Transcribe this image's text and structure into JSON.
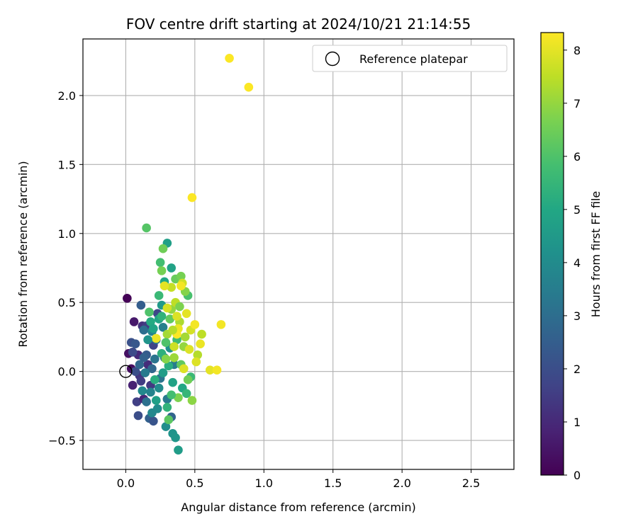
{
  "chart_data": {
    "type": "scatter",
    "title": "FOV centre drift starting at 2024/10/21 21:14:55",
    "xlabel": "Angular distance from reference (arcmin)",
    "ylabel": "Rotation from reference (arcmin)",
    "xlim": [
      -0.31,
      2.81
    ],
    "ylim": [
      -0.71,
      2.41
    ],
    "xticks": [
      0.0,
      0.5,
      1.0,
      1.5,
      2.0,
      2.5
    ],
    "xtick_labels": [
      "0.0",
      "0.5",
      "1.0",
      "1.5",
      "2.0",
      "2.5"
    ],
    "yticks": [
      -0.5,
      0.0,
      0.5,
      1.0,
      1.5,
      2.0
    ],
    "ytick_labels": [
      "−0.5",
      "0.0",
      "0.5",
      "1.0",
      "1.5",
      "2.0"
    ],
    "grid": true,
    "legend": {
      "position": "top-right",
      "label": "Reference platepar",
      "marker": "open-circle"
    },
    "reference_point": {
      "x": 0.0,
      "y": 0.0
    },
    "colorbar": {
      "label": "Hours from first FF file",
      "min": 0,
      "max": 8.33,
      "ticks": [
        0,
        1,
        2,
        3,
        4,
        5,
        6,
        7,
        8
      ],
      "tick_labels": [
        "0",
        "1",
        "2",
        "3",
        "4",
        "5",
        "6",
        "7",
        "8"
      ],
      "colormap": "viridis"
    },
    "points": [
      {
        "x": 0.01,
        "y": 0.53,
        "t": 0.05
      },
      {
        "x": 0.06,
        "y": 0.36,
        "t": 0.6
      },
      {
        "x": 0.02,
        "y": 0.13,
        "t": 0.4
      },
      {
        "x": 0.04,
        "y": 0.02,
        "t": 0.3
      },
      {
        "x": 0.05,
        "y": -0.1,
        "t": 0.8
      },
      {
        "x": 0.09,
        "y": 0.12,
        "t": 1.0
      },
      {
        "x": 0.12,
        "y": 0.33,
        "t": 1.2
      },
      {
        "x": 0.15,
        "y": 0.33,
        "t": 1.5
      },
      {
        "x": 0.08,
        "y": -0.22,
        "t": 1.6
      },
      {
        "x": 0.13,
        "y": -0.2,
        "t": 0.9
      },
      {
        "x": 0.1,
        "y": -0.03,
        "t": 1.3
      },
      {
        "x": 0.16,
        "y": 0.05,
        "t": 1.1
      },
      {
        "x": 0.18,
        "y": -0.1,
        "t": 1.4
      },
      {
        "x": 0.2,
        "y": 0.19,
        "t": 1.7
      },
      {
        "x": 0.23,
        "y": 0.42,
        "t": 1.8
      },
      {
        "x": 0.09,
        "y": -0.32,
        "t": 2.0
      },
      {
        "x": 0.04,
        "y": 0.21,
        "t": 2.1
      },
      {
        "x": 0.07,
        "y": 0.2,
        "t": 2.3
      },
      {
        "x": 0.11,
        "y": 0.48,
        "t": 2.5
      },
      {
        "x": 0.15,
        "y": 0.12,
        "t": 2.4
      },
      {
        "x": 0.17,
        "y": -0.34,
        "t": 2.6
      },
      {
        "x": 0.2,
        "y": -0.36,
        "t": 2.2
      },
      {
        "x": 0.19,
        "y": 0.02,
        "t": 2.8
      },
      {
        "x": 0.13,
        "y": 0.3,
        "t": 3.0
      },
      {
        "x": 0.22,
        "y": 0.23,
        "t": 3.1
      },
      {
        "x": 0.25,
        "y": -0.05,
        "t": 3.2
      },
      {
        "x": 0.28,
        "y": 0.1,
        "t": 3.3
      },
      {
        "x": 0.3,
        "y": -0.2,
        "t": 3.4
      },
      {
        "x": 0.33,
        "y": -0.33,
        "t": 2.7
      },
      {
        "x": 0.35,
        "y": 0.05,
        "t": 3.5
      },
      {
        "x": 0.27,
        "y": 0.32,
        "t": 3.6
      },
      {
        "x": 0.19,
        "y": 0.29,
        "t": 3.8
      },
      {
        "x": 0.12,
        "y": -0.14,
        "t": 3.9
      },
      {
        "x": 0.23,
        "y": -0.27,
        "t": 4.0
      },
      {
        "x": 0.29,
        "y": -0.4,
        "t": 4.1
      },
      {
        "x": 0.34,
        "y": -0.45,
        "t": 4.3
      },
      {
        "x": 0.36,
        "y": -0.48,
        "t": 4.4
      },
      {
        "x": 0.38,
        "y": -0.57,
        "t": 4.6
      },
      {
        "x": 0.32,
        "y": 0.17,
        "t": 4.2
      },
      {
        "x": 0.26,
        "y": 0.48,
        "t": 4.5
      },
      {
        "x": 0.3,
        "y": 0.93,
        "t": 4.7
      },
      {
        "x": 0.33,
        "y": 0.75,
        "t": 4.8
      },
      {
        "x": 0.28,
        "y": 0.65,
        "t": 5.0
      },
      {
        "x": 0.24,
        "y": 0.38,
        "t": 4.9
      },
      {
        "x": 0.18,
        "y": 0.36,
        "t": 5.1
      },
      {
        "x": 0.21,
        "y": -0.06,
        "t": 5.2
      },
      {
        "x": 0.26,
        "y": 0.13,
        "t": 5.3
      },
      {
        "x": 0.3,
        "y": -0.26,
        "t": 5.4
      },
      {
        "x": 0.41,
        "y": -0.12,
        "t": 5.0
      },
      {
        "x": 0.44,
        "y": -0.16,
        "t": 5.5
      },
      {
        "x": 0.47,
        "y": -0.04,
        "t": 5.6
      },
      {
        "x": 0.37,
        "y": 0.23,
        "t": 5.7
      },
      {
        "x": 0.25,
        "y": 0.79,
        "t": 5.8
      },
      {
        "x": 0.45,
        "y": 0.55,
        "t": 5.9
      },
      {
        "x": 0.15,
        "y": 1.04,
        "t": 6.1
      },
      {
        "x": 0.17,
        "y": 0.43,
        "t": 6.0
      },
      {
        "x": 0.31,
        "y": -0.35,
        "t": 6.2
      },
      {
        "x": 0.4,
        "y": 0.05,
        "t": 6.3
      },
      {
        "x": 0.36,
        "y": 0.67,
        "t": 6.4
      },
      {
        "x": 0.27,
        "y": 0.89,
        "t": 6.5
      },
      {
        "x": 0.26,
        "y": 0.73,
        "t": 6.6
      },
      {
        "x": 0.38,
        "y": -0.19,
        "t": 6.7
      },
      {
        "x": 0.48,
        "y": -0.21,
        "t": 6.9
      },
      {
        "x": 0.43,
        "y": 0.58,
        "t": 6.8
      },
      {
        "x": 0.4,
        "y": 0.69,
        "t": 6.6
      },
      {
        "x": 0.33,
        "y": 0.45,
        "t": 7.0
      },
      {
        "x": 0.35,
        "y": 0.1,
        "t": 7.1
      },
      {
        "x": 0.3,
        "y": 0.27,
        "t": 7.2
      },
      {
        "x": 0.39,
        "y": 0.36,
        "t": 7.3
      },
      {
        "x": 0.42,
        "y": 0.18,
        "t": 7.0
      },
      {
        "x": 0.52,
        "y": 0.12,
        "t": 7.4
      },
      {
        "x": 0.36,
        "y": 0.5,
        "t": 7.5
      },
      {
        "x": 0.33,
        "y": 0.61,
        "t": 7.6
      },
      {
        "x": 0.41,
        "y": 0.64,
        "t": 7.7
      },
      {
        "x": 0.47,
        "y": 0.3,
        "t": 7.8
      },
      {
        "x": 0.55,
        "y": 0.27,
        "t": 7.5
      },
      {
        "x": 0.51,
        "y": 0.07,
        "t": 7.9
      },
      {
        "x": 0.44,
        "y": 0.42,
        "t": 8.0
      },
      {
        "x": 0.38,
        "y": 0.31,
        "t": 8.1
      },
      {
        "x": 0.46,
        "y": 0.16,
        "t": 7.9
      },
      {
        "x": 0.35,
        "y": 0.18,
        "t": 7.7
      },
      {
        "x": 0.28,
        "y": 0.62,
        "t": 8.0
      },
      {
        "x": 0.3,
        "y": 0.46,
        "t": 7.8
      },
      {
        "x": 0.54,
        "y": 0.2,
        "t": 8.1
      },
      {
        "x": 0.5,
        "y": 0.34,
        "t": 8.2
      },
      {
        "x": 0.69,
        "y": 0.34,
        "t": 8.2
      },
      {
        "x": 0.61,
        "y": 0.01,
        "t": 8.0
      },
      {
        "x": 0.66,
        "y": 0.01,
        "t": 8.2
      },
      {
        "x": 0.42,
        "y": 0.02,
        "t": 7.9
      },
      {
        "x": 0.4,
        "y": 0.62,
        "t": 8.2
      },
      {
        "x": 0.37,
        "y": 0.27,
        "t": 8.3
      },
      {
        "x": 0.22,
        "y": 0.24,
        "t": 8.1
      },
      {
        "x": 0.48,
        "y": 1.26,
        "t": 8.3
      },
      {
        "x": 0.75,
        "y": 2.27,
        "t": 8.3
      },
      {
        "x": 0.89,
        "y": 2.06,
        "t": 8.3
      },
      {
        "x": 0.07,
        "y": 0.0,
        "t": 2.0
      },
      {
        "x": 0.1,
        "y": 0.05,
        "t": 2.8
      },
      {
        "x": 0.14,
        "y": -0.01,
        "t": 3.4
      },
      {
        "x": 0.18,
        "y": -0.15,
        "t": 3.7
      },
      {
        "x": 0.21,
        "y": 0.09,
        "t": 3.2
      },
      {
        "x": 0.24,
        "y": -0.12,
        "t": 4.0
      },
      {
        "x": 0.27,
        "y": -0.01,
        "t": 4.6
      },
      {
        "x": 0.31,
        "y": 0.04,
        "t": 5.2
      },
      {
        "x": 0.34,
        "y": -0.08,
        "t": 4.8
      },
      {
        "x": 0.29,
        "y": 0.21,
        "t": 6.0
      },
      {
        "x": 0.24,
        "y": 0.55,
        "t": 5.6
      },
      {
        "x": 0.32,
        "y": 0.38,
        "t": 6.3
      },
      {
        "x": 0.39,
        "y": 0.47,
        "t": 6.7
      },
      {
        "x": 0.43,
        "y": 0.25,
        "t": 7.2
      },
      {
        "x": 0.45,
        "y": -0.06,
        "t": 6.5
      },
      {
        "x": 0.16,
        "y": 0.23,
        "t": 4.3
      },
      {
        "x": 0.13,
        "y": 0.1,
        "t": 2.6
      },
      {
        "x": 0.05,
        "y": 0.14,
        "t": 1.9
      },
      {
        "x": 0.11,
        "y": -0.07,
        "t": 1.5
      },
      {
        "x": 0.2,
        "y": 0.31,
        "t": 4.9
      },
      {
        "x": 0.26,
        "y": 0.4,
        "t": 5.4
      },
      {
        "x": 0.34,
        "y": 0.3,
        "t": 7.4
      },
      {
        "x": 0.37,
        "y": 0.4,
        "t": 7.9
      },
      {
        "x": 0.29,
        "y": 0.09,
        "t": 6.8
      },
      {
        "x": 0.33,
        "y": -0.17,
        "t": 5.8
      },
      {
        "x": 0.22,
        "y": -0.21,
        "t": 4.7
      },
      {
        "x": 0.19,
        "y": -0.3,
        "t": 3.9
      },
      {
        "x": 0.15,
        "y": -0.22,
        "t": 3.1
      }
    ]
  }
}
